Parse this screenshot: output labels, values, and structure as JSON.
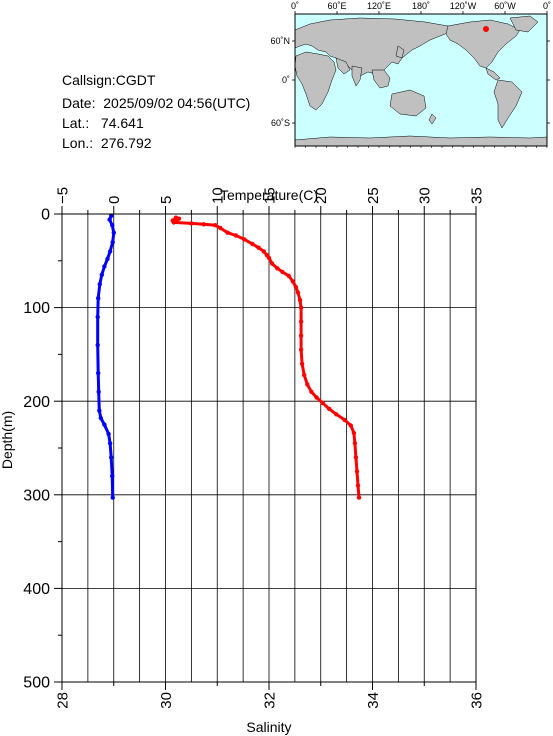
{
  "station": {
    "callsign_label": "Callsign:",
    "callsign": "CGDT",
    "date_label": "Date:",
    "date": "2025/09/02 04:56(UTC)",
    "lat_label": "Lat.:",
    "lat": "74.641",
    "lon_label": "Lon.:",
    "lon": "276.792"
  },
  "map": {
    "top_ticks": [
      "0˚",
      "60˚E",
      "120˚E",
      "180˚",
      "120˚W",
      "60˚W",
      "0˚"
    ],
    "left_ticks": [
      "60˚N",
      "0˚",
      "60˚S"
    ],
    "ocean_color": "#ccffff",
    "land_color": "#c0c0c0",
    "marker_color": "#ff0000"
  },
  "chart_data": {
    "type": "line",
    "x_top_label": "Temperature(C)",
    "x_top_ticks": [
      -5,
      0,
      5,
      10,
      15,
      20,
      25,
      30,
      35
    ],
    "x_top_range": [
      -5,
      35
    ],
    "x_bottom_label": "Salinity",
    "x_bottom_ticks": [
      28,
      30,
      32,
      34,
      36
    ],
    "x_bottom_range": [
      28,
      36
    ],
    "ylabel": "Depth(m)",
    "y_ticks": [
      0,
      100,
      200,
      300,
      400,
      500
    ],
    "y_range": [
      0,
      500
    ],
    "y_inverted": true,
    "grid": true,
    "series": [
      {
        "quantity": "temperature",
        "axis": "top",
        "color": "#ff0000",
        "points": [
          [
            5.7,
            7
          ],
          [
            6.0,
            4
          ],
          [
            6.3,
            5
          ],
          [
            5.8,
            9
          ],
          [
            7.5,
            10
          ],
          [
            8.7,
            11
          ],
          [
            9.8,
            12
          ],
          [
            10.3,
            15
          ],
          [
            11.0,
            20
          ],
          [
            11.8,
            23
          ],
          [
            12.6,
            27
          ],
          [
            13.4,
            32
          ],
          [
            14.0,
            36
          ],
          [
            14.5,
            40
          ],
          [
            14.8,
            44
          ],
          [
            15.0,
            47
          ],
          [
            15.3,
            53
          ],
          [
            15.8,
            58
          ],
          [
            16.3,
            62
          ],
          [
            16.9,
            66
          ],
          [
            17.3,
            72
          ],
          [
            17.6,
            78
          ],
          [
            17.8,
            84
          ],
          [
            18.0,
            92
          ],
          [
            18.1,
            100
          ],
          [
            18.1,
            115
          ],
          [
            18.1,
            130
          ],
          [
            18.1,
            145
          ],
          [
            18.2,
            160
          ],
          [
            18.4,
            172
          ],
          [
            18.7,
            182
          ],
          [
            19.1,
            190
          ],
          [
            19.6,
            196
          ],
          [
            20.2,
            202
          ],
          [
            20.8,
            208
          ],
          [
            21.5,
            214
          ],
          [
            22.3,
            220
          ],
          [
            22.9,
            226
          ],
          [
            23.2,
            234
          ],
          [
            23.3,
            245
          ],
          [
            23.4,
            260
          ],
          [
            23.5,
            275
          ],
          [
            23.6,
            290
          ],
          [
            23.7,
            303
          ]
        ]
      },
      {
        "quantity": "salinity",
        "axis": "bottom",
        "color": "#0000ff",
        "points": [
          [
            28.95,
            2
          ],
          [
            28.92,
            6
          ],
          [
            28.97,
            12
          ],
          [
            29.0,
            20
          ],
          [
            28.98,
            30
          ],
          [
            28.93,
            40
          ],
          [
            28.88,
            48
          ],
          [
            28.82,
            56
          ],
          [
            28.77,
            65
          ],
          [
            28.73,
            75
          ],
          [
            28.7,
            90
          ],
          [
            28.69,
            110
          ],
          [
            28.69,
            140
          ],
          [
            28.7,
            170
          ],
          [
            28.71,
            190
          ],
          [
            28.72,
            210
          ],
          [
            28.75,
            218
          ],
          [
            28.82,
            225
          ],
          [
            28.9,
            235
          ],
          [
            28.93,
            245
          ],
          [
            28.95,
            260
          ],
          [
            28.97,
            280
          ],
          [
            28.98,
            303
          ]
        ]
      }
    ]
  }
}
